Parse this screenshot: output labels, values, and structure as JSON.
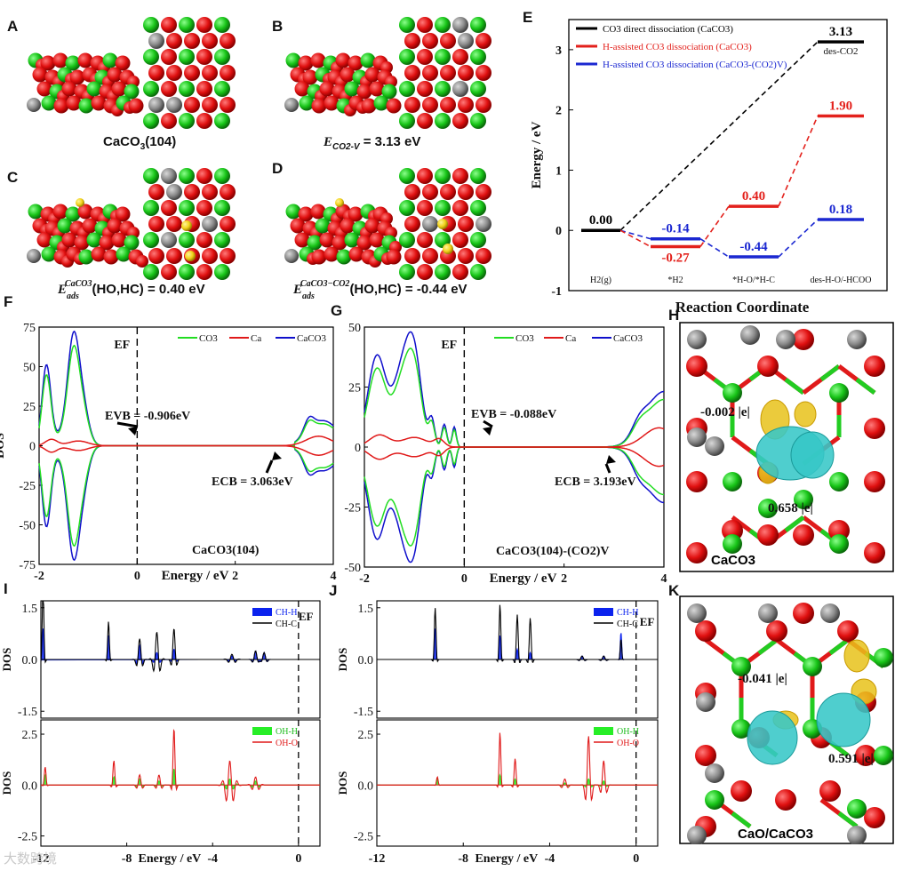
{
  "panels": {
    "A": "A",
    "B": "B",
    "C": "C",
    "D": "D",
    "E": "E",
    "F": "F",
    "G": "G",
    "H": "H",
    "I": "I",
    "J": "J",
    "K": "K"
  },
  "structure_captions": {
    "A": "CaCO3(104)",
    "B": "E_CO2-V = 3.13 eV",
    "C": "E_ads^CaCO3(HO,HC) = 0.40 eV",
    "D": "E_ads^CaCO3-CO2(HO,HC) = -0.44 eV"
  },
  "charge_panels": {
    "H": {
      "caption": "CaCO3",
      "labels": [
        "-0.002 |e|",
        "0.658 |e|"
      ]
    },
    "K": {
      "caption": "CaO/CaCO3",
      "labels": [
        "-0.041 |e|",
        "0.591 |e|"
      ]
    }
  },
  "watermark": "大数跨境",
  "chart_data": [
    {
      "panel": "E",
      "type": "line",
      "title": "",
      "xlabel": "Reaction Coordinate",
      "ylabel": "Energy / eV",
      "ylim": [
        -1,
        3.5
      ],
      "yticks": [
        -1,
        0,
        1,
        2,
        3
      ],
      "categories": [
        "H2(g)",
        "*H2",
        "*H-O/*H-C",
        "des-H-O/-HCOO"
      ],
      "extra_label": "des-CO2",
      "series": [
        {
          "name": "CO3 direct dissociation (CaCO3)",
          "color": "#000000",
          "levels": [
            {
              "x": 0,
              "y": 0.0,
              "label": "0.00"
            },
            {
              "x": 3,
              "y": 3.13,
              "label": "3.13"
            }
          ]
        },
        {
          "name": "H-assisted CO3 dissociation (CaCO3)",
          "color": "#e3211c",
          "levels": [
            {
              "x": 1,
              "y": -0.27,
              "label": "-0.27"
            },
            {
              "x": 2,
              "y": 0.4,
              "label": "0.40"
            },
            {
              "x": 3,
              "y": 1.9,
              "label": "1.90"
            }
          ]
        },
        {
          "name": "H-assisted CO3 dissociation (CaCO3-(CO2)V)",
          "color": "#1b28d1",
          "levels": [
            {
              "x": 1,
              "y": -0.14,
              "label": "-0.14"
            },
            {
              "x": 2,
              "y": -0.44,
              "label": "-0.44"
            },
            {
              "x": 3,
              "y": 0.18,
              "label": "0.18"
            }
          ]
        }
      ]
    },
    {
      "panel": "F",
      "type": "line",
      "xlabel": "Energy / eV",
      "ylabel": "DOS",
      "xlim": [
        -2,
        4
      ],
      "ylim": [
        -75,
        75
      ],
      "xticks": [
        -2,
        0,
        2,
        4
      ],
      "yticks": [
        -75,
        -50,
        -25,
        0,
        25,
        50,
        75
      ],
      "series_names": [
        "CO3",
        "Ca",
        "CaCO3"
      ],
      "annotations": {
        "ef": "EF",
        "vb": "EVB = -0.906eV",
        "cb": "ECB = 3.063eV",
        "system": "CaCO3(104)"
      }
    },
    {
      "panel": "G",
      "type": "line",
      "xlabel": "Energy / eV",
      "ylabel": "DOS",
      "xlim": [
        -2,
        4
      ],
      "ylim": [
        -50,
        50
      ],
      "xticks": [
        -2,
        0,
        2,
        4
      ],
      "yticks": [
        -50,
        -25,
        0,
        25,
        50
      ],
      "series_names": [
        "CO3",
        "Ca",
        "CaCO3"
      ],
      "annotations": {
        "ef": "EF",
        "vb": "EVB = -0.088eV",
        "cb": "ECB = 3.193eV",
        "system": "CaCO3(104)-(CO2)V"
      }
    },
    {
      "panel": "I",
      "type": "line",
      "xlabel": "Energy / eV",
      "ylabel": "DOS",
      "xlim": [
        -12,
        1
      ],
      "xticks": [
        -12,
        -8,
        -4,
        0
      ],
      "top": {
        "ylim": [
          -1.7,
          1.7
        ],
        "yticks": [
          -1.5,
          0.0,
          1.5
        ],
        "series_names": [
          "CH-H",
          "CH-C"
        ]
      },
      "bottom": {
        "ylim": [
          -3.0,
          3.2
        ],
        "yticks": [
          -2.5,
          0.0,
          2.5
        ],
        "series_names": [
          "OH-H",
          "OH-O"
        ]
      },
      "ef_label": "EF"
    },
    {
      "panel": "J",
      "type": "line",
      "xlabel": "Energy / eV",
      "ylabel": "DOS",
      "xlim": [
        -12,
        1
      ],
      "xticks": [
        -12,
        -8,
        -4,
        0
      ],
      "top": {
        "ylim": [
          -1.7,
          1.7
        ],
        "yticks": [
          -1.5,
          0.0,
          1.5
        ],
        "series_names": [
          "CH-H",
          "CH-C"
        ]
      },
      "bottom": {
        "ylim": [
          -3.0,
          3.2
        ],
        "yticks": [
          -2.5,
          0.0,
          2.5
        ],
        "series_names": [
          "OH-H",
          "OH-O"
        ]
      },
      "ef_label": "EF"
    }
  ]
}
